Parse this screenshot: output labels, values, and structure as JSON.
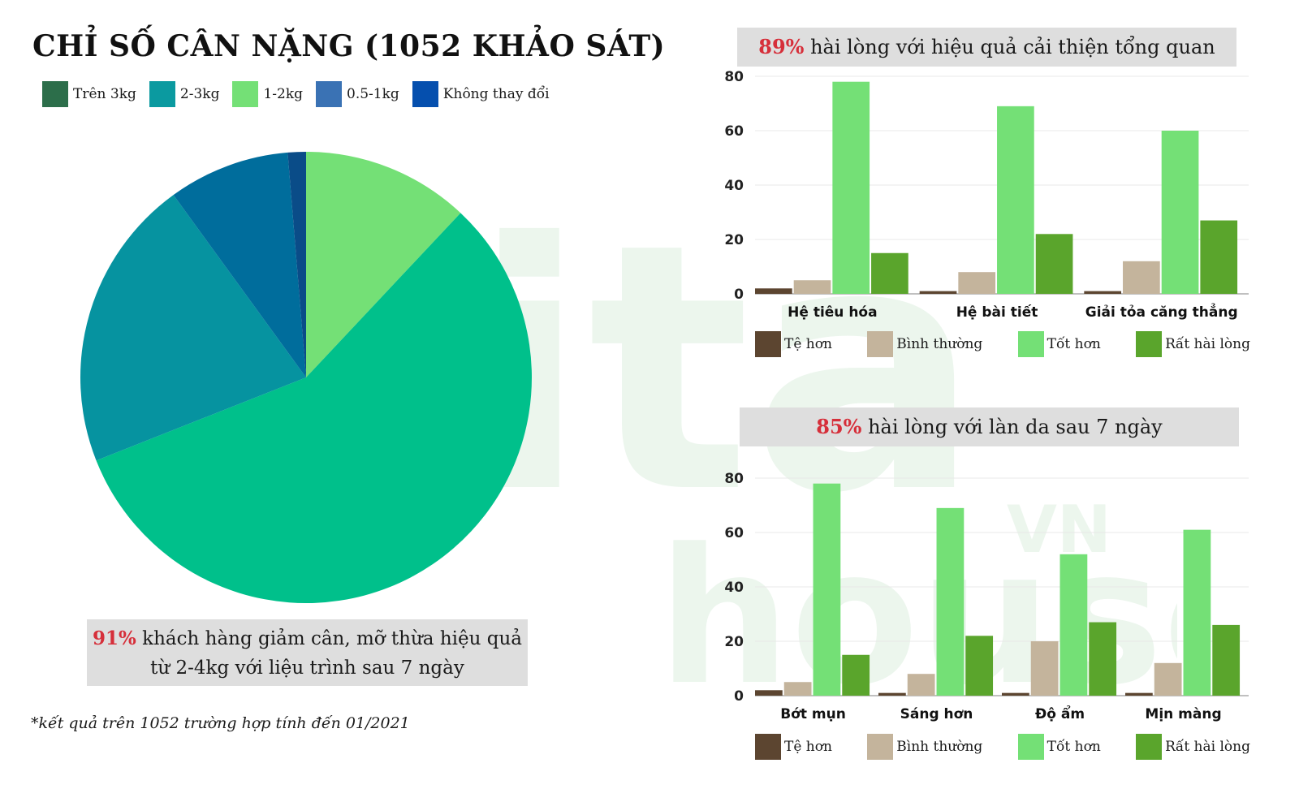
{
  "watermark": {
    "text_top": "ita",
    "text_bottom": "house",
    "text_vn": "VN",
    "text_the": "THE"
  },
  "pie": {
    "title": "CHỈ SỐ CÂN NẶNG (1052 KHẢO SÁT)",
    "note_highlight": "91%",
    "note_line1": " khách hàng giảm cân, mỡ thừa hiệu quả",
    "note_line2": "từ 2-4kg với liệu trình sau 7 ngày",
    "footnote": "*kết quả trên 1052 trường hợp tính đến 01/2021"
  },
  "bar1": {
    "title_highlight": "89%",
    "title_rest": " hài lòng với hiệu quả cải thiện tổng quan"
  },
  "bar2": {
    "title_highlight": "85%",
    "title_rest": " hài lòng với làn da sau 7 ngày"
  },
  "chart_data": [
    {
      "type": "pie",
      "title": "CHỈ SỐ CÂN NẶNG (1052 KHẢO SÁT)",
      "legend_position": "top",
      "labels": [
        "Trên 3kg",
        "2-3kg",
        "1-2kg",
        "0.5-1kg",
        "Không thay đổi"
      ],
      "legend_colors": [
        "#2c6e4a",
        "#0b9aa0",
        "#74e076",
        "#3a72b4",
        "#054fae"
      ],
      "slices": [
        {
          "value": 12,
          "color": "#74e076"
        },
        {
          "value": 57,
          "color": "#00c08b"
        },
        {
          "value": 21,
          "color": "#0693a0"
        },
        {
          "value": 8.7,
          "color": "#006d9c"
        },
        {
          "value": 1.3,
          "color": "#0a4c88"
        }
      ]
    },
    {
      "type": "bar",
      "title": "89% hài lòng với hiệu quả cải thiện tổng quan",
      "categories": [
        "Hệ tiêu hóa",
        "Hệ bài tiết",
        "Giải tỏa căng thẳng"
      ],
      "ylim": [
        0,
        80
      ],
      "yticks": [
        0,
        20,
        40,
        60,
        80
      ],
      "grid": true,
      "legend_position": "bottom",
      "series": [
        {
          "name": "Tệ hơn",
          "color": "#5c4530",
          "values": [
            2,
            1,
            1
          ]
        },
        {
          "name": "Bình thường",
          "color": "#c4b49c",
          "values": [
            5,
            8,
            12
          ]
        },
        {
          "name": "Tốt hơn",
          "color": "#74e076",
          "values": [
            78,
            69,
            60
          ]
        },
        {
          "name": "Rất hài lòng",
          "color": "#5aa52c",
          "values": [
            15,
            22,
            27
          ]
        }
      ]
    },
    {
      "type": "bar",
      "title": "85% hài lòng với làn da sau 7 ngày",
      "categories": [
        "Bớt mụn",
        "Sáng hơn",
        "Độ ẩm",
        "Mịn màng"
      ],
      "ylim": [
        0,
        80
      ],
      "yticks": [
        0,
        20,
        40,
        60,
        80
      ],
      "grid": true,
      "legend_position": "bottom",
      "series": [
        {
          "name": "Tệ hơn",
          "color": "#5c4530",
          "values": [
            2,
            1,
            1,
            1
          ]
        },
        {
          "name": "Bình thường",
          "color": "#c4b49c",
          "values": [
            5,
            8,
            20,
            12
          ]
        },
        {
          "name": "Tốt hơn",
          "color": "#74e076",
          "values": [
            78,
            69,
            52,
            61
          ]
        },
        {
          "name": "Rất hài lòng",
          "color": "#5aa52c",
          "values": [
            15,
            22,
            27,
            26
          ]
        }
      ]
    }
  ]
}
